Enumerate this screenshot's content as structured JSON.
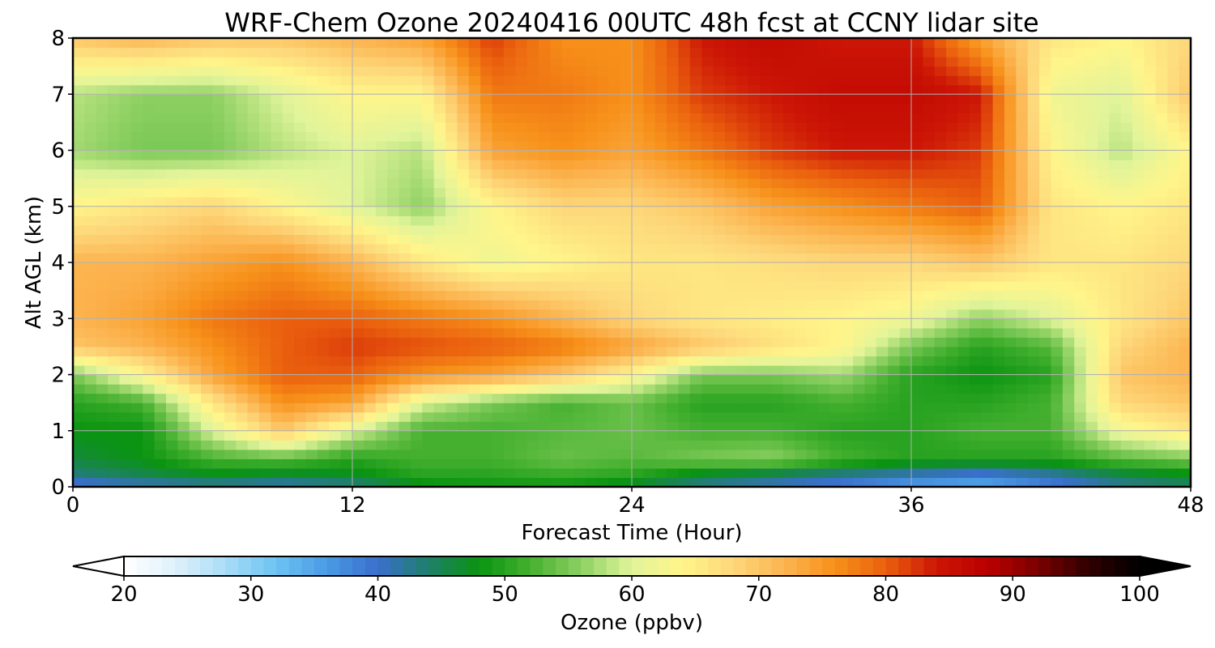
{
  "chart_data": {
    "type": "heatmap",
    "title": "WRF-Chem Ozone  20240416 00UTC 48h fcst at CCNY lidar site",
    "xlabel": "Forecast Time (Hour)",
    "ylabel": "Alt AGL (km)",
    "xlim": [
      0,
      48
    ],
    "ylim": [
      0,
      8
    ],
    "xticks": [
      0,
      12,
      24,
      36,
      48
    ],
    "yticks": [
      0,
      1,
      2,
      3,
      4,
      5,
      6,
      7,
      8
    ],
    "grid": true,
    "colorbar": {
      "label": "Ozone  (ppbv)",
      "range": [
        20,
        100
      ],
      "ticks": [
        20,
        30,
        40,
        50,
        60,
        70,
        80,
        90,
        100
      ],
      "extend": "both",
      "orientation": "horizontal",
      "colors": [
        "#ffffff",
        "#dff1fb",
        "#a9dcf6",
        "#6cc3f3",
        "#4a9ae4",
        "#3a6fcc",
        "#1f7f6a",
        "#0a9410",
        "#45b030",
        "#8dd062",
        "#e1f49a",
        "#fff58a",
        "#fdd77a",
        "#fcb450",
        "#f7911a",
        "#ea600e",
        "#cc1606",
        "#bb0000",
        "#7a0000",
        "#300000",
        "#000000"
      ]
    },
    "x": [
      0,
      3,
      6,
      9,
      12,
      15,
      18,
      21,
      24,
      27,
      30,
      33,
      36,
      39,
      42,
      45,
      48
    ],
    "y": [
      0,
      0.2,
      0.5,
      1,
      1.5,
      2,
      2.5,
      3,
      4,
      5,
      6,
      7,
      8
    ],
    "values": [
      [
        38,
        40,
        41,
        40,
        42,
        47,
        48,
        48,
        46,
        42,
        40,
        38,
        35,
        34,
        38,
        42,
        44
      ],
      [
        43,
        45,
        47,
        46,
        47,
        50,
        50,
        51,
        50,
        46,
        44,
        42,
        40,
        38,
        41,
        45,
        47
      ],
      [
        46,
        48,
        52,
        53,
        50,
        52,
        52,
        54,
        53,
        55,
        56,
        52,
        50,
        50,
        50,
        53,
        55
      ],
      [
        48,
        48,
        60,
        70,
        60,
        52,
        52,
        53,
        54,
        52,
        52,
        50,
        50,
        52,
        52,
        62,
        66
      ],
      [
        50,
        52,
        66,
        76,
        74,
        60,
        55,
        52,
        54,
        50,
        50,
        52,
        50,
        50,
        52,
        68,
        70
      ],
      [
        55,
        64,
        74,
        80,
        80,
        76,
        74,
        70,
        64,
        55,
        55,
        57,
        50,
        48,
        50,
        70,
        72
      ],
      [
        70,
        72,
        76,
        80,
        82,
        81,
        80,
        78,
        74,
        70,
        67,
        64,
        55,
        50,
        53,
        68,
        72
      ],
      [
        72,
        74,
        78,
        80,
        80,
        78,
        76,
        72,
        68,
        66,
        65,
        64,
        62,
        56,
        60,
        66,
        70
      ],
      [
        72,
        72,
        74,
        76,
        72,
        66,
        62,
        64,
        66,
        66,
        67,
        68,
        68,
        70,
        66,
        66,
        68
      ],
      [
        64,
        66,
        68,
        64,
        60,
        56,
        64,
        68,
        68,
        70,
        74,
        76,
        78,
        80,
        66,
        64,
        66
      ],
      [
        57,
        55,
        55,
        58,
        60,
        58,
        74,
        76,
        74,
        78,
        82,
        84,
        84,
        82,
        64,
        58,
        64
      ],
      [
        58,
        56,
        56,
        60,
        64,
        64,
        78,
        78,
        76,
        82,
        84,
        86,
        86,
        84,
        62,
        60,
        70
      ],
      [
        70,
        72,
        70,
        70,
        72,
        74,
        82,
        76,
        76,
        84,
        86,
        84,
        84,
        74,
        66,
        64,
        68
      ]
    ]
  }
}
